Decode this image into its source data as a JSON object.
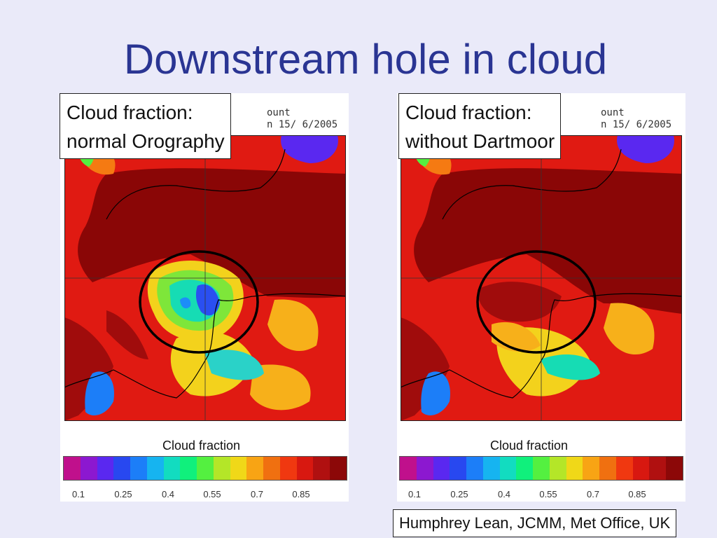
{
  "slide": {
    "title": "Downstream hole in cloud",
    "credit": "Humphrey Lean, JCMM, Met Office, UK"
  },
  "panels": [
    {
      "label_line1": "Cloud fraction:",
      "label_line2": "normal Orography",
      "header_line1": "ount",
      "header_line2": "n 15/ 6/2005",
      "colorbar_title": "Cloud fraction",
      "ticks": [
        "0.1",
        "0.25",
        "0.4",
        "0.55",
        "0.7",
        "0.85"
      ]
    },
    {
      "label_line1": "Cloud fraction:",
      "label_line2": "without Dartmoor",
      "header_line1": "ount",
      "header_line2": "n 15/ 6/2005",
      "colorbar_title": "Cloud fraction",
      "ticks": [
        "0.1",
        "0.25",
        "0.4",
        "0.55",
        "0.7",
        "0.85"
      ]
    }
  ],
  "colors": {
    "title": "#2a3593",
    "colorbar": [
      "#c0108c",
      "#8c18d0",
      "#5a28f0",
      "#2848f0",
      "#1c7ef8",
      "#16b4f0",
      "#12dcc0",
      "#10f07c",
      "#54f040",
      "#b4e628",
      "#f0d818",
      "#f8a414",
      "#f07010",
      "#f03810",
      "#d81810",
      "#b01010",
      "#8c0808"
    ]
  }
}
